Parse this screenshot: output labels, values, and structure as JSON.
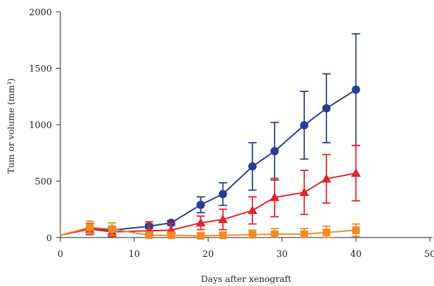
{
  "chart_data": {
    "type": "line",
    "xlabel": "Days after xenograft",
    "ylabel": "Tum or volume (mm³)",
    "xlim": [
      0,
      50
    ],
    "ylim": [
      0,
      2000
    ],
    "xticks": [
      0,
      10,
      20,
      30,
      40,
      50
    ],
    "yticks": [
      0,
      500,
      1000,
      1500,
      2000
    ],
    "grid": false,
    "series": [
      {
        "color": "#2b3d8f",
        "marker": "circle",
        "points": [
          {
            "x": 0,
            "y": 20,
            "err": 0
          },
          {
            "x": 4,
            "y": 80,
            "err": 10
          },
          {
            "x": 7,
            "y": 65,
            "err": 10
          },
          {
            "x": 12,
            "y": 100,
            "err": 20
          },
          {
            "x": 15,
            "y": 130,
            "err": 20
          },
          {
            "x": 19,
            "y": 290,
            "err": 70
          },
          {
            "x": 22,
            "y": 385,
            "err": 100
          },
          {
            "x": 26,
            "y": 630,
            "err": 210
          },
          {
            "x": 29,
            "y": 765,
            "err": 255
          },
          {
            "x": 33,
            "y": 995,
            "err": 300
          },
          {
            "x": 36,
            "y": 1145,
            "err": 305
          },
          {
            "x": 40,
            "y": 1310,
            "err": 495
          }
        ]
      },
      {
        "color": "#e3232b",
        "marker": "triangle",
        "points": [
          {
            "x": 0,
            "y": 20,
            "err": 0
          },
          {
            "x": 4,
            "y": 75,
            "err": 50
          },
          {
            "x": 7,
            "y": 50,
            "err": 40
          },
          {
            "x": 12,
            "y": 60,
            "err": 80
          },
          {
            "x": 15,
            "y": 65,
            "err": 60
          },
          {
            "x": 19,
            "y": 130,
            "err": 60
          },
          {
            "x": 22,
            "y": 160,
            "err": 90
          },
          {
            "x": 26,
            "y": 240,
            "err": 120
          },
          {
            "x": 29,
            "y": 355,
            "err": 170
          },
          {
            "x": 33,
            "y": 400,
            "err": 195
          },
          {
            "x": 36,
            "y": 520,
            "err": 215
          },
          {
            "x": 40,
            "y": 570,
            "err": 245
          }
        ]
      },
      {
        "color": "#f08a24",
        "marker": "square",
        "points": [
          {
            "x": 0,
            "y": 20,
            "err": 0
          },
          {
            "x": 4,
            "y": 90,
            "err": 55
          },
          {
            "x": 7,
            "y": 75,
            "err": 55
          },
          {
            "x": 12,
            "y": 20,
            "err": 30
          },
          {
            "x": 15,
            "y": 20,
            "err": 25
          },
          {
            "x": 19,
            "y": 15,
            "err": 25
          },
          {
            "x": 22,
            "y": 20,
            "err": 25
          },
          {
            "x": 26,
            "y": 25,
            "err": 40
          },
          {
            "x": 29,
            "y": 30,
            "err": 50
          },
          {
            "x": 33,
            "y": 30,
            "err": 50
          },
          {
            "x": 36,
            "y": 45,
            "err": 55
          },
          {
            "x": 40,
            "y": 65,
            "err": 55
          }
        ]
      }
    ]
  }
}
